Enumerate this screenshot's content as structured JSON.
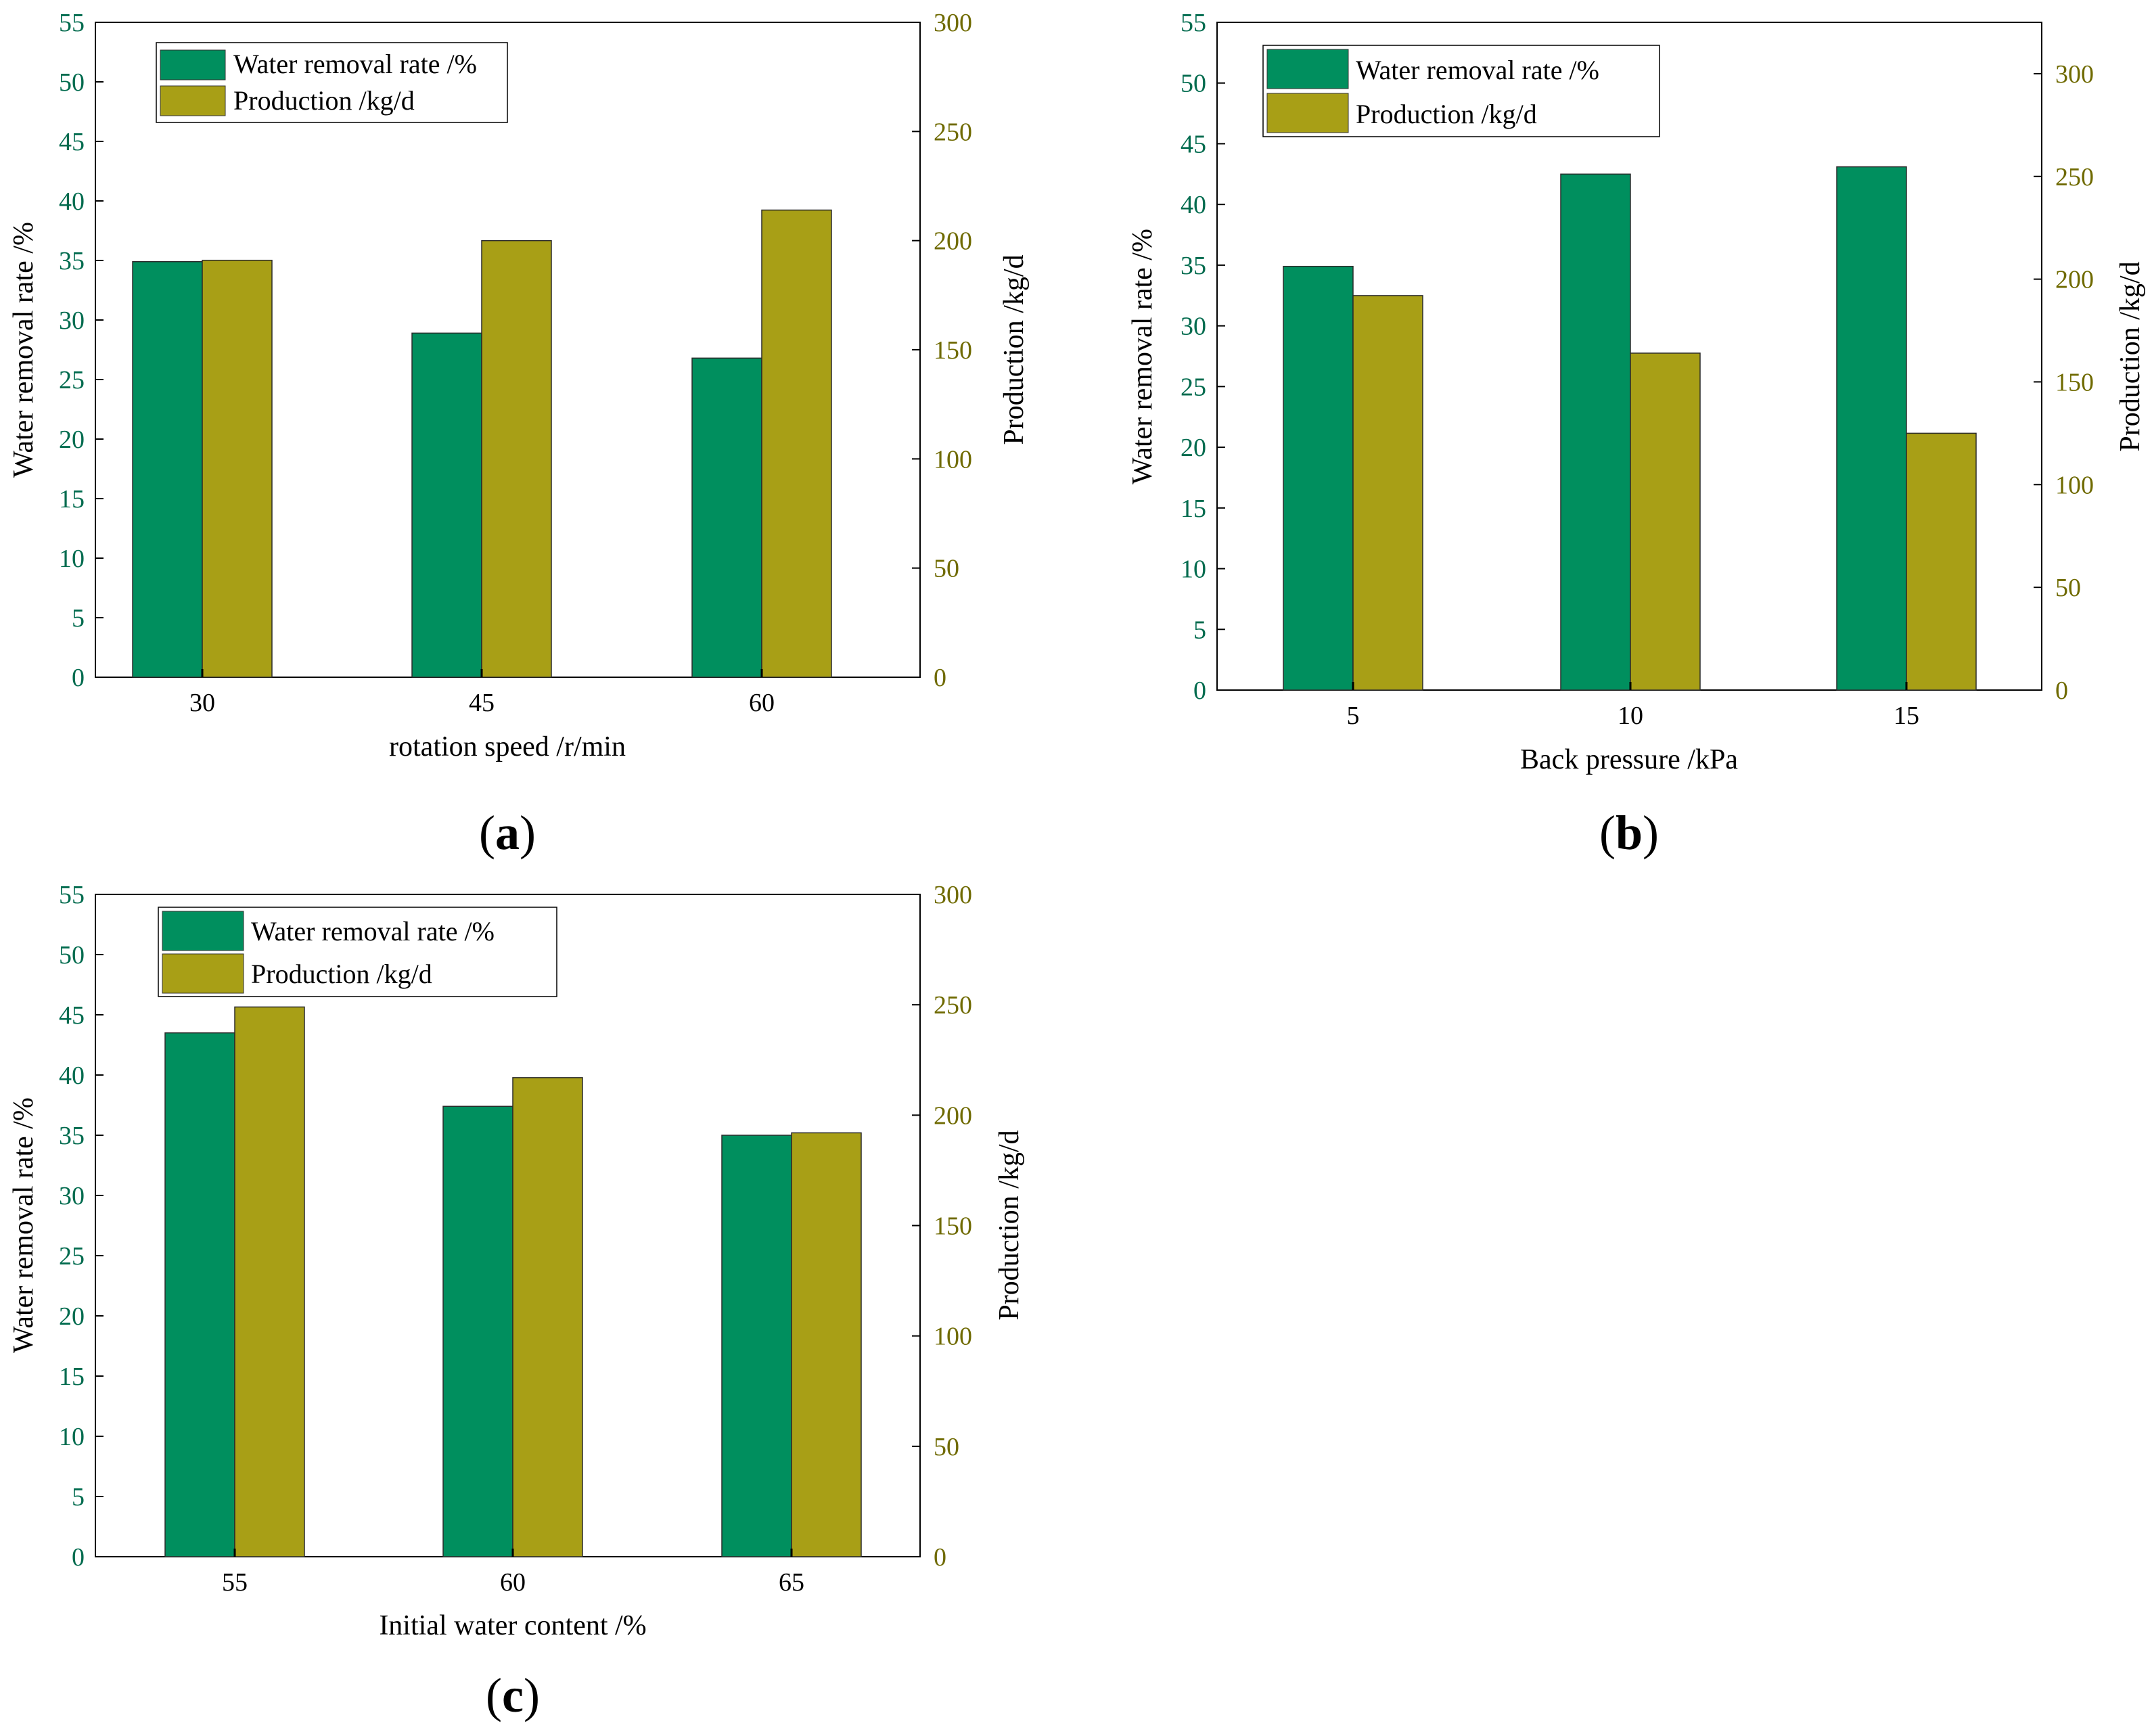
{
  "colors": {
    "water": "#008f5e",
    "production": "#a89f16",
    "left_axis_text": "#006b4e",
    "right_axis_text": "#6f6a00",
    "axis_line": "#000000"
  },
  "chart_data": [
    {
      "type": "bar",
      "panel": "a",
      "panel_letter": "a",
      "xlabel": "rotation speed /r/min",
      "ylabel_left": "Water removal rate /%",
      "ylabel_right": "Production /kg/d",
      "categories": [
        "30",
        "45",
        "60"
      ],
      "ylim_left": [
        0,
        55
      ],
      "ylim_right": [
        0,
        300
      ],
      "yticks_left": [
        "0",
        "5",
        "10",
        "15",
        "20",
        "25",
        "30",
        "35",
        "40",
        "45",
        "50",
        "55"
      ],
      "yticks_right": [
        "0",
        "50",
        "100",
        "150",
        "200",
        "250",
        "300"
      ],
      "legend": [
        "Water removal rate /%",
        "Production /kg/d"
      ],
      "legend_position": "top-left",
      "series": [
        {
          "name": "Water removal rate /%",
          "axis": "left",
          "values": [
            34.9,
            28.9,
            26.8
          ]
        },
        {
          "name": "Production /kg/d",
          "axis": "right",
          "values": [
            191,
            200,
            214
          ]
        }
      ]
    },
    {
      "type": "bar",
      "panel": "b",
      "panel_letter": "b",
      "xlabel": "Back pressure /kPa",
      "ylabel_left": "Water removal rate /%",
      "ylabel_right": "Production /kg/d",
      "categories": [
        "5",
        "10",
        "15"
      ],
      "ylim_left": [
        0,
        55
      ],
      "ylim_right": [
        0,
        325
      ],
      "yticks_left": [
        "0",
        "5",
        "10",
        "15",
        "20",
        "25",
        "30",
        "35",
        "40",
        "45",
        "50",
        "55"
      ],
      "yticks_right": [
        "0",
        "50",
        "100",
        "150",
        "200",
        "250",
        "300"
      ],
      "legend": [
        "Water removal rate /%",
        "Production /kg/d"
      ],
      "legend_position": "top-left",
      "series": [
        {
          "name": "Water removal rate /%",
          "axis": "left",
          "values": [
            34.9,
            42.5,
            43.1
          ]
        },
        {
          "name": "Production /kg/d",
          "axis": "right",
          "values": [
            192,
            164,
            125
          ]
        }
      ]
    },
    {
      "type": "bar",
      "panel": "c",
      "panel_letter": "c",
      "xlabel": "Initial water content /%",
      "ylabel_left": "Water removal rate /%",
      "ylabel_right": "Production /kg/d",
      "categories": [
        "55",
        "60",
        "65"
      ],
      "ylim_left": [
        0,
        55
      ],
      "ylim_right": [
        0,
        300
      ],
      "yticks_left": [
        "0",
        "5",
        "10",
        "15",
        "20",
        "25",
        "30",
        "35",
        "40",
        "45",
        "50",
        "55"
      ],
      "yticks_right": [
        "0",
        "50",
        "100",
        "150",
        "200",
        "250",
        "300"
      ],
      "legend": [
        "Water removal rate /%",
        "Production /kg/d"
      ],
      "legend_position": "top-left",
      "series": [
        {
          "name": "Water removal rate /%",
          "axis": "left",
          "values": [
            43.5,
            37.4,
            35.0
          ]
        },
        {
          "name": "Production /kg/d",
          "axis": "right",
          "values": [
            249,
            217,
            192
          ]
        }
      ]
    }
  ]
}
